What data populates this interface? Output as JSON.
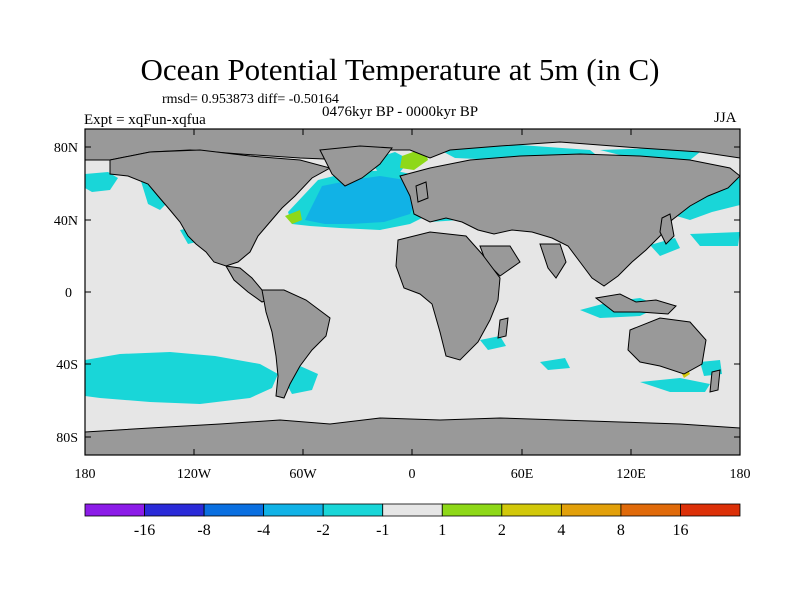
{
  "title": "Ocean Potential Temperature at 5m (in C)",
  "stats_line": "rmsd= 0.953873 diff= -0.50164",
  "experiment": "Expt = xqFun-xqfua",
  "period": "0476kyr BP - 0000kyr BP",
  "season": "JJA",
  "axes": {
    "lat_ticks": [
      "80N",
      "40N",
      "0",
      "40S",
      "80S"
    ],
    "lat_values": [
      80,
      40,
      0,
      -40,
      -80
    ],
    "lon_ticks": [
      "180",
      "120W",
      "60W",
      "0",
      "60E",
      "120E",
      "180"
    ],
    "lon_values": [
      -180,
      -120,
      -60,
      0,
      60,
      120,
      180
    ],
    "lat_range": [
      -90,
      90
    ],
    "lon_range": [
      -180,
      180
    ]
  },
  "colorbar": {
    "labels": [
      "-16",
      "-8",
      "-4",
      "-2",
      "-1",
      "1",
      "2",
      "4",
      "8",
      "16"
    ],
    "colors": [
      "#8c1ce8",
      "#2a2ad8",
      "#0a6fe0",
      "#11b2e6",
      "#19d6d8",
      "#e6e6e6",
      "#8ed818",
      "#d2c80a",
      "#e2a00a",
      "#e06a0a",
      "#dc3008"
    ]
  },
  "colors": {
    "land": "#999999",
    "ocean_neutral": "#e6e6e6",
    "cool_light": "#19d6d8",
    "cool_mid": "#11b2e6",
    "warm_light": "#8ed818"
  },
  "features": {
    "north_atlantic": "anomaly -2 to -4",
    "southern_ocean_band": "anomaly -1 to -2",
    "labrador_greenland": "anomaly 1 to 2"
  }
}
